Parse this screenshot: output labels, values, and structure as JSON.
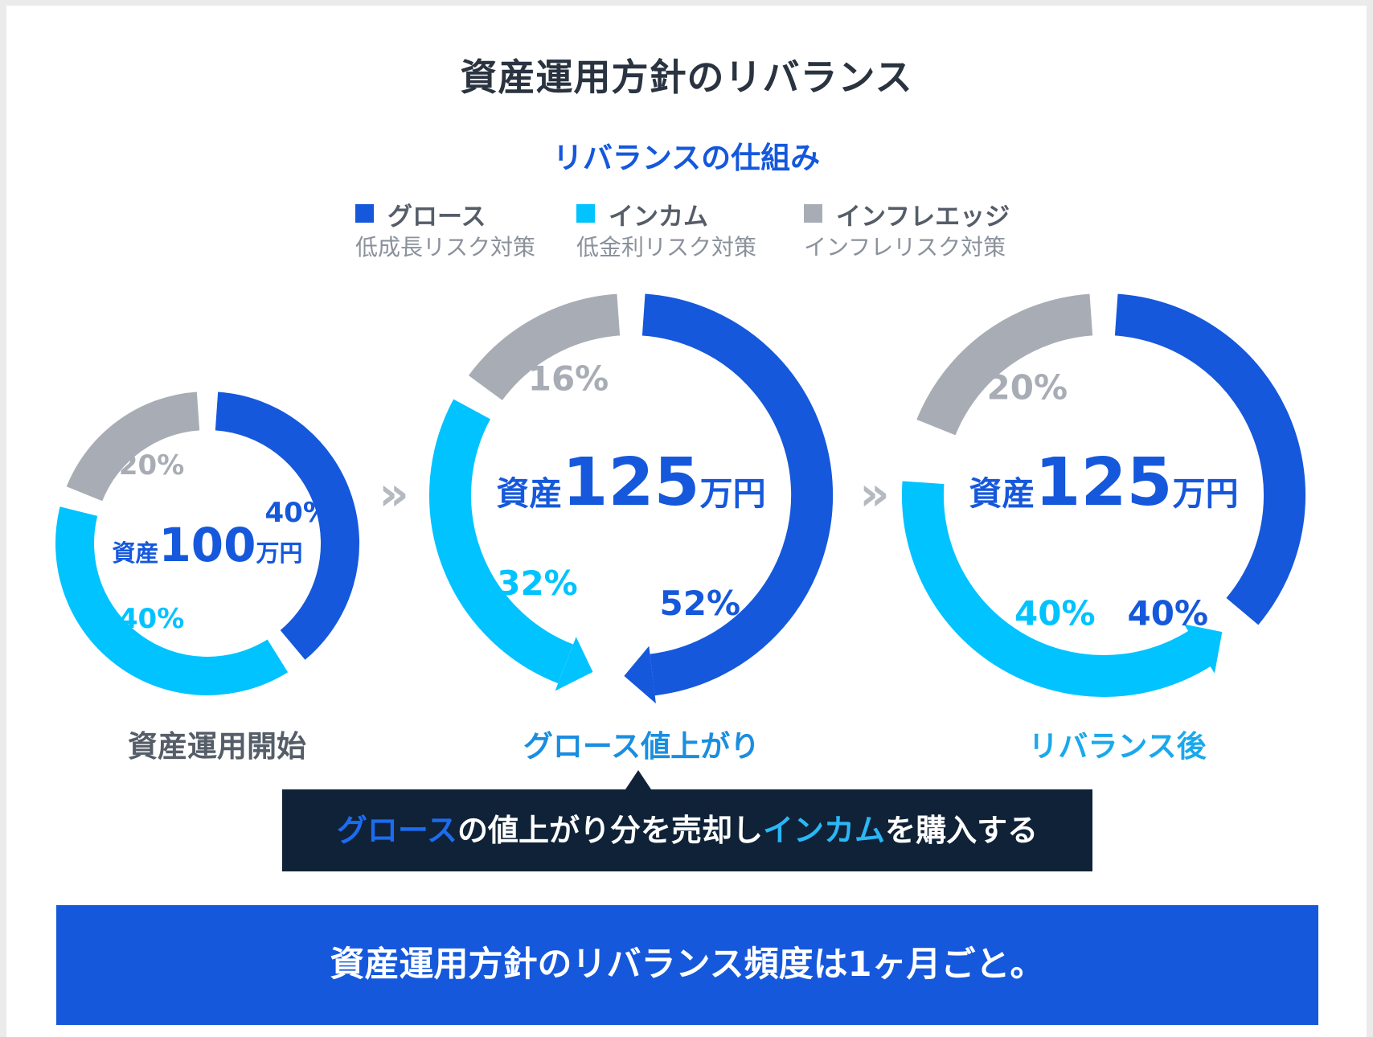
{
  "title": "資産運用方針のリバランス",
  "subtitle": "リバランスの仕組み",
  "colors": {
    "growth": "#1558dc",
    "income": "#00c3ff",
    "inflation": "#a8adb5",
    "dark": "#0f2237"
  },
  "legend": [
    {
      "name": "グロース",
      "desc": "低成長リスク対策"
    },
    {
      "name": "インカム",
      "desc": "低金利リスク対策"
    },
    {
      "name": "インフレエッジ",
      "desc": "インフレリスク対策"
    }
  ],
  "chart_data": {
    "type": "pie",
    "series_names": [
      "グロース",
      "インカム",
      "インフレエッジ"
    ],
    "charts": [
      {
        "caption": "資産運用開始",
        "asset_prefix": "資産",
        "asset_value": "100",
        "asset_unit": "万円",
        "values": [
          40,
          40,
          20
        ]
      },
      {
        "caption": "グロース値上がり",
        "asset_prefix": "資産",
        "asset_value": "125",
        "asset_unit": "万円",
        "values": [
          52,
          32,
          16
        ]
      },
      {
        "caption": "リバランス後",
        "asset_prefix": "資産",
        "asset_value": "125",
        "asset_unit": "万円",
        "values": [
          40,
          40,
          20
        ]
      }
    ],
    "flow_arrows": [
      "»",
      "»"
    ]
  },
  "callout": {
    "part1": "グロース",
    "part2": "の値上がり分を売却し",
    "part3": "インカム",
    "part4": "を購入する"
  },
  "footer": "資産運用方針のリバランス頻度は1ヶ月ごと。"
}
